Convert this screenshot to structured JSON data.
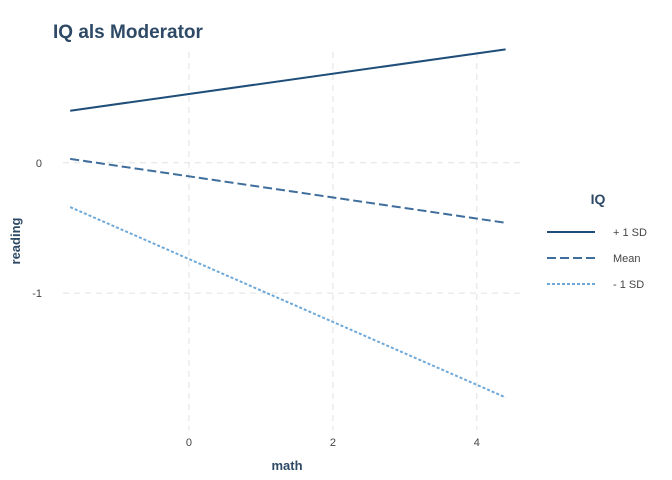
{
  "chart_data": {
    "type": "line",
    "title": "IQ als Moderator",
    "xlabel": "math",
    "ylabel": "reading",
    "xlim": [
      -1.75,
      4.6
    ],
    "ylim": [
      -2.05,
      0.85
    ],
    "x_ticks": [
      0,
      2,
      4
    ],
    "y_ticks": [
      0,
      -1
    ],
    "grid": true,
    "legend": {
      "title": "IQ",
      "position": "right"
    },
    "series": [
      {
        "name": "+ 1 SD",
        "dash": "solid",
        "color": "#1f4e79",
        "x": [
          -1.65,
          4.4
        ],
        "y": [
          0.4,
          0.87
        ]
      },
      {
        "name": "Mean",
        "dash": "dashed",
        "color": "#3f6e9c",
        "x": [
          -1.65,
          4.4
        ],
        "y": [
          0.03,
          -0.46
        ]
      },
      {
        "name": "- 1 SD",
        "dash": "dotted",
        "color": "#6ea8d8",
        "x": [
          -1.65,
          4.4
        ],
        "y": [
          -0.34,
          -1.8
        ]
      }
    ]
  }
}
